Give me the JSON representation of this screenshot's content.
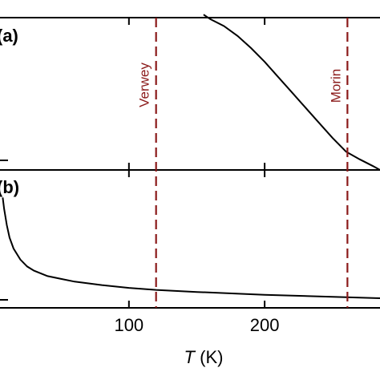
{
  "chart_data": {
    "type": "line",
    "xlabel_italic": "T",
    "xlabel_unit": " (K)",
    "xlim": [
      5,
      285
    ],
    "xticks": [
      {
        "value": 100,
        "label": "100"
      },
      {
        "value": 200,
        "label": "200"
      }
    ],
    "markers": [
      {
        "name": "Verwey",
        "x": 120,
        "color": "#8b1a1a"
      },
      {
        "name": "Morin",
        "x": 261,
        "color": "#8b1a1a"
      }
    ],
    "panels": [
      {
        "label": "(a)",
        "ylim": [
          0,
          1
        ],
        "series": [
          {
            "color": "#000000",
            "x": [
              155,
              160,
              170,
              180,
              190,
              200,
              210,
              220,
              230,
              240,
              250,
              260,
              270,
              280,
              285
            ],
            "y": [
              1.02,
              0.99,
              0.945,
              0.88,
              0.8,
              0.71,
              0.61,
              0.51,
              0.41,
              0.31,
              0.21,
              0.12,
              0.07,
              0.025,
              0.0
            ]
          }
        ]
      },
      {
        "label": "(b)",
        "ylim": [
          0,
          1
        ],
        "series": [
          {
            "color": "#000000",
            "x": [
              7,
              8,
              10,
              12,
              15,
              20,
              25,
              30,
              40,
              50,
              60,
              80,
              100,
              120,
              150,
              200,
              250,
              285
            ],
            "y": [
              0.8,
              0.72,
              0.6,
              0.51,
              0.43,
              0.35,
              0.3,
              0.27,
              0.23,
              0.21,
              0.19,
              0.165,
              0.145,
              0.13,
              0.115,
              0.095,
              0.08,
              0.07
            ]
          }
        ]
      }
    ]
  }
}
